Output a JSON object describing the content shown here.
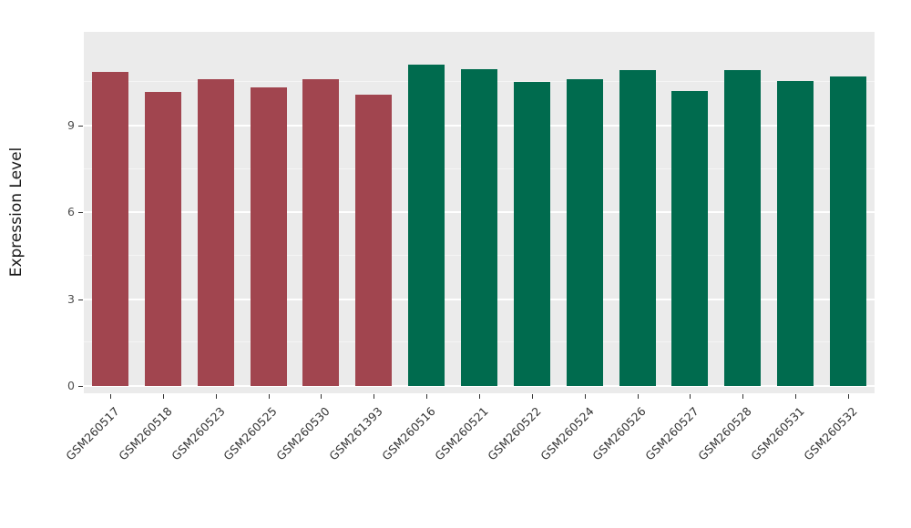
{
  "chart_data": {
    "type": "bar",
    "title": "",
    "xlabel": "",
    "ylabel": "Expression Level",
    "ylim": [
      0,
      11.6
    ],
    "yticks": [
      0,
      3,
      6,
      9
    ],
    "yticks_minor": [
      1.5,
      4.5,
      7.5,
      10.5
    ],
    "grid": true,
    "legend_position": "none",
    "panel_bg": "#ebebeb",
    "grid_color": "#ffffff",
    "categories": [
      "GSM260517",
      "GSM260518",
      "GSM260523",
      "GSM260525",
      "GSM260530",
      "GSM261393",
      "GSM260516",
      "GSM260521",
      "GSM260522",
      "GSM260524",
      "GSM260526",
      "GSM260527",
      "GSM260528",
      "GSM260531",
      "GSM260532"
    ],
    "values": [
      10.85,
      10.15,
      10.6,
      10.3,
      10.6,
      10.05,
      11.1,
      10.95,
      10.5,
      10.6,
      10.9,
      10.2,
      10.9,
      10.55,
      10.7
    ],
    "groups": [
      "group1",
      "group1",
      "group1",
      "group1",
      "group1",
      "group1",
      "group2",
      "group2",
      "group2",
      "group2",
      "group2",
      "group2",
      "group2",
      "group2",
      "group2"
    ],
    "colors": {
      "group1": "#a1454f",
      "group2": "#006b4e"
    }
  }
}
